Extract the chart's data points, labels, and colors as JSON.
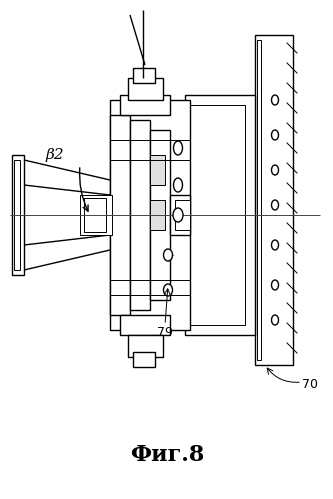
{
  "title": "Фиг.8",
  "title_fontsize": 16,
  "bg_color": "#ffffff",
  "line_color": "#000000",
  "label_beta2": "β2",
  "label_79": "79",
  "label_70": "70",
  "fig_width": 3.33,
  "fig_height": 4.99,
  "dpi": 100
}
